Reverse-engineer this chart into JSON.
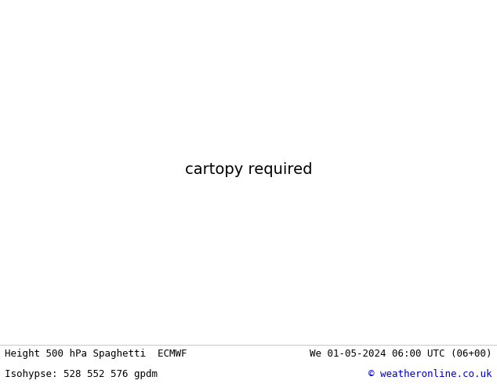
{
  "title_left": "Height 500 hPa Spaghetti  ECMWF",
  "title_right": "We 01-05-2024 06:00 UTC (06+00)",
  "subtitle_left": "Isohypse: 528 552 576 gpdm",
  "subtitle_right": "© weatheronline.co.uk",
  "bg_color": "#ffffff",
  "land_color": "#c8f0a0",
  "ocean_color": "#e8e8e8",
  "border_color": "#808080",
  "coast_color": "#808080",
  "state_border_color": "#a0a0a0",
  "text_color_black": "#000000",
  "text_color_blue": "#0000cc",
  "font_family": "monospace",
  "fig_width": 6.34,
  "fig_height": 4.9,
  "dpi": 100,
  "map_extent": [
    -175,
    -50,
    15,
    85
  ],
  "central_longitude": -100,
  "spaghetti_colors": [
    "#ff0000",
    "#00cc00",
    "#0000ff",
    "#ff8800",
    "#cc00cc",
    "#00cccc",
    "#ffcc00",
    "#ff0088",
    "#888800",
    "#008888",
    "#ff6666",
    "#66ff66",
    "#6666ff",
    "#ff8866",
    "#8866ff",
    "#cc4400",
    "#004488",
    "#440088",
    "#884400",
    "#008844",
    "#ff4444",
    "#44ff44"
  ],
  "bottom_sep_color": "#cccccc"
}
